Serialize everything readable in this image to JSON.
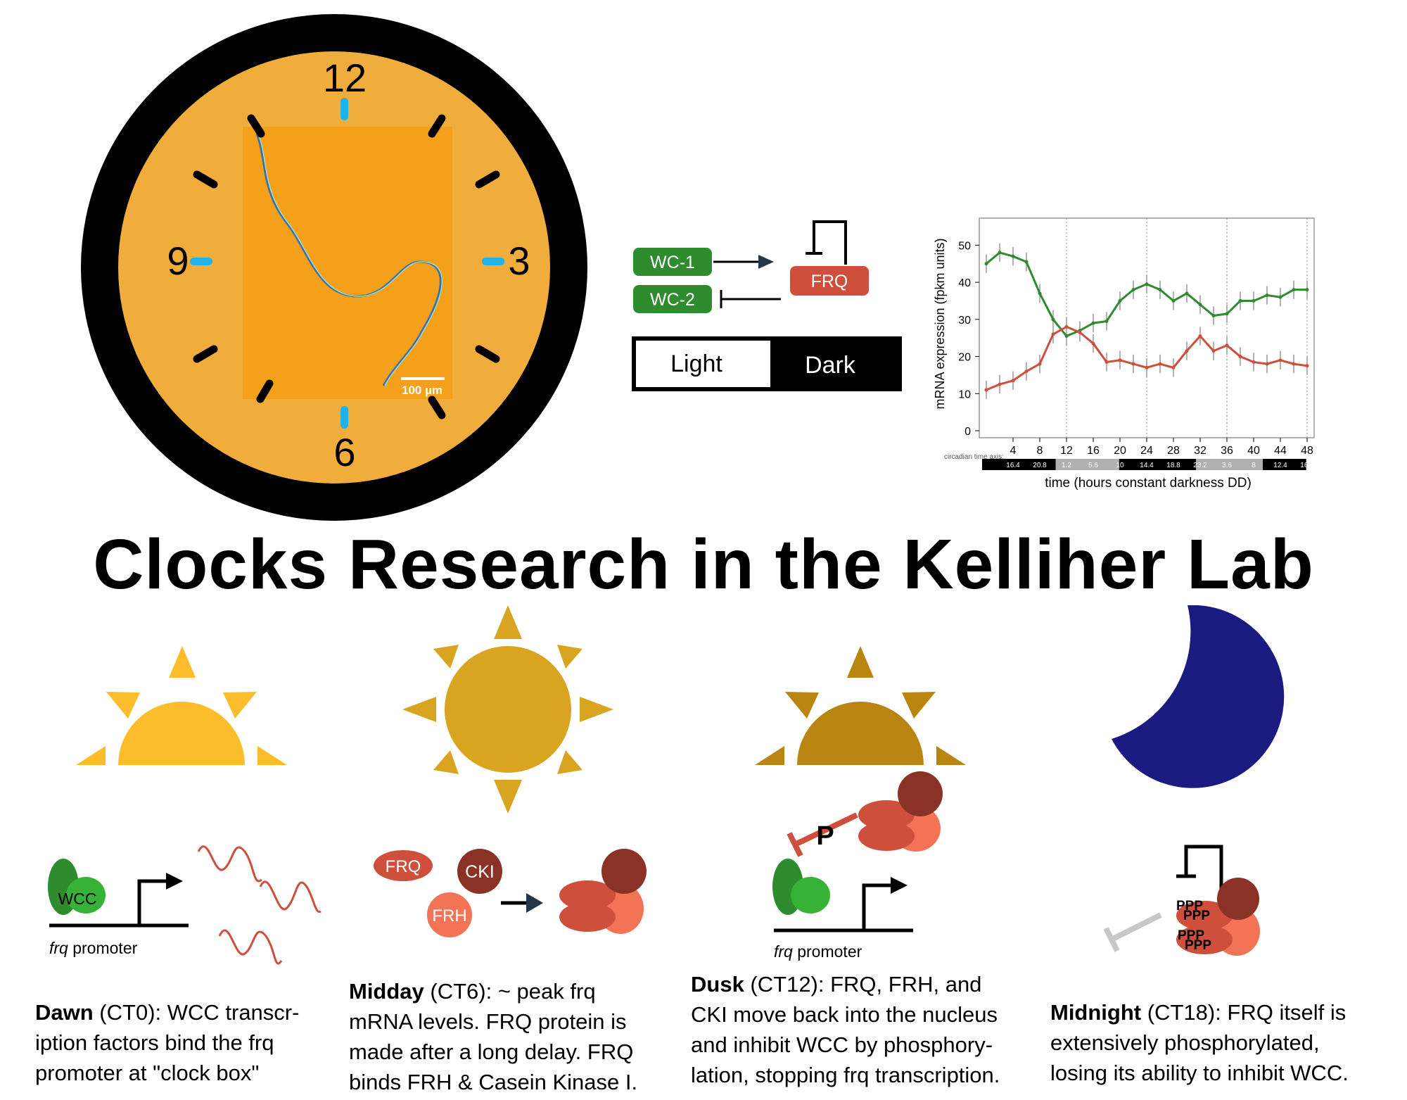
{
  "clock": {
    "numbers": [
      "12",
      "3",
      "6",
      "9"
    ],
    "scale_bar": "100 µm",
    "face_color": "#f0ad3c",
    "rim_color": "#000000",
    "tick_color": "#1fb3ea"
  },
  "network": {
    "wc1": "WC-1",
    "wc2": "WC-2",
    "frq": "FRQ",
    "light": "Light",
    "dark": "Dark",
    "green": "#2e8b2e",
    "red": "#cd4f3c"
  },
  "chart_data": {
    "type": "line",
    "ylabel": "mRNA expression (fpkm units)",
    "xlabel": "time (hours constant darkness DD)",
    "ylim": [
      0,
      55
    ],
    "yticks": [
      0,
      10,
      20,
      30,
      40,
      50
    ],
    "xticks": [
      4,
      8,
      12,
      16,
      20,
      24,
      28,
      32,
      36,
      40,
      44,
      48
    ],
    "x": [
      0,
      2,
      4,
      6,
      8,
      10,
      12,
      14,
      16,
      18,
      20,
      22,
      24,
      26,
      28,
      30,
      32,
      34,
      36,
      38,
      40,
      42,
      44,
      46,
      48
    ],
    "series": [
      {
        "color": "#2e8b2e",
        "values": [
          45,
          48,
          47,
          45.5,
          37,
          30,
          25.5,
          27,
          29,
          29.5,
          35,
          38,
          39.5,
          38,
          35,
          37,
          34,
          31,
          31.5,
          35,
          35,
          36.5,
          36,
          38,
          38
        ]
      },
      {
        "color": "#cd4f3c",
        "values": [
          11,
          12.5,
          13.5,
          16,
          18,
          26,
          28,
          26.5,
          23.5,
          18.5,
          19,
          18,
          17,
          18,
          17,
          21.5,
          25.5,
          21.5,
          23,
          20,
          18.5,
          18,
          19,
          18,
          17.5
        ]
      }
    ],
    "circadian_label": "circadian time axis:",
    "circadian_ticks": [
      "16.4",
      "20.8",
      "1.2",
      "5.6",
      "10",
      "14.4",
      "18.8",
      "23.2",
      "3.6",
      "8",
      "12.4",
      "16.8"
    ],
    "grid": false,
    "dividers": [
      12,
      24,
      36,
      48
    ]
  },
  "title": "Clocks Research in the Kelliher Lab",
  "panels": {
    "dawn": {
      "wcc": "WCC",
      "promoter_italic": "frq",
      "promoter_rest": " promoter",
      "caption_bold": "Dawn",
      "caption_lines": [
        " (CT0): WCC transcr-",
        "iption factors bind the frq",
        "promoter at \"clock box\""
      ],
      "sun_color": "#fbbd2b"
    },
    "midday": {
      "frq": "FRQ",
      "cki": "CKI",
      "frh": "FRH",
      "caption_bold": "Midday",
      "caption_lines": [
        " (CT6): ~ peak frq",
        "mRNA levels. FRQ protein is",
        "made after a long delay. FRQ",
        "binds FRH & Casein Kinase I."
      ],
      "sun_color": "#d9a520"
    },
    "dusk": {
      "p": "P",
      "promoter_italic": "frq",
      "promoter_rest": " promoter",
      "caption_bold": "Dusk",
      "caption_lines": [
        " (CT12): FRQ, FRH, and",
        "CKI move back into the nucleus",
        "and inhibit WCC by phosphory-",
        "lation, stopping frq transcription."
      ],
      "sun_color": "#b98510"
    },
    "midnight": {
      "ppp": "PPP",
      "caption_bold": "Midnight",
      "caption_lines": [
        " (CT18): FRQ itself is",
        "extensively phosphorylated,",
        "losing its ability to inhibit WCC."
      ],
      "moon_color": "#1a1a80"
    }
  }
}
